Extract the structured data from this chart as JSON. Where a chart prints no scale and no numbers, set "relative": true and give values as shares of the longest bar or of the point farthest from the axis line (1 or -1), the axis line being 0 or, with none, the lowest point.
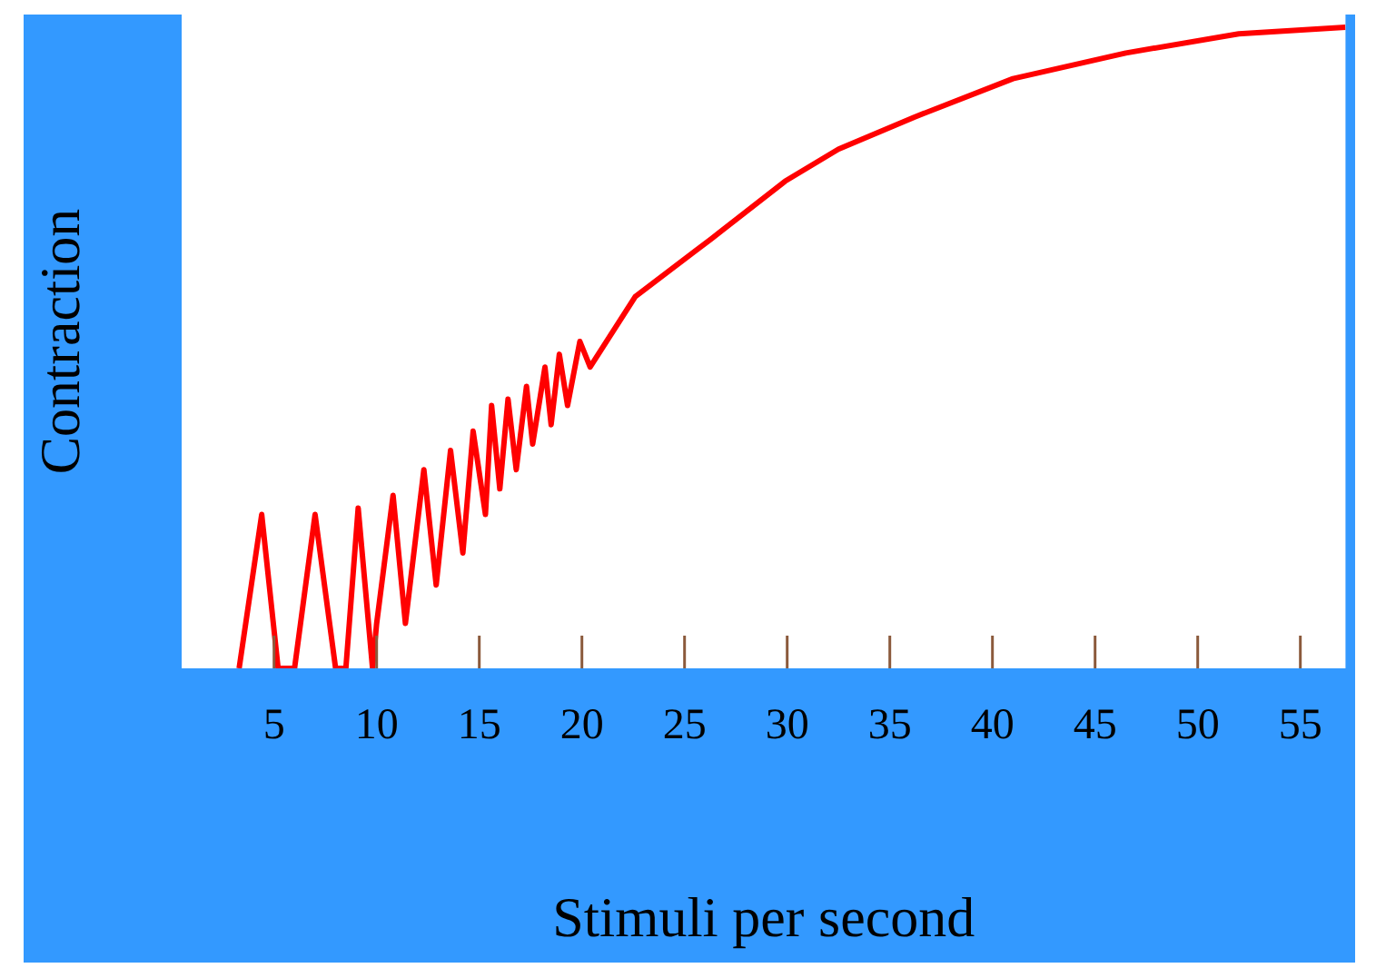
{
  "chart_data": {
    "type": "line",
    "xlabel": "Stimuli per second",
    "ylabel": "Contraction",
    "relative": true,
    "marker": "none",
    "color": "#ff0000",
    "xlim": [
      0.5,
      57.2
    ],
    "xticks": [
      5,
      10,
      15,
      20,
      25,
      30,
      35,
      40,
      45,
      50,
      55
    ],
    "x": [
      3.3,
      4.4,
      5.2,
      6.0,
      7.0,
      8.0,
      8.5,
      9.1,
      9.8,
      10.0,
      10.8,
      11.4,
      12.3,
      12.9,
      13.6,
      14.2,
      14.7,
      15.3,
      15.6,
      16.0,
      16.4,
      16.8,
      17.3,
      17.6,
      18.2,
      18.5,
      18.9,
      19.3,
      19.9,
      20.4,
      22.6,
      26.3,
      29.9,
      32.5,
      36.2,
      41.0,
      46.5,
      52.0,
      57.2
    ],
    "values": [
      0,
      0.24,
      0,
      0,
      0.24,
      0,
      0,
      0.25,
      0,
      0.07,
      0.27,
      0.07,
      0.31,
      0.13,
      0.34,
      0.18,
      0.37,
      0.24,
      0.41,
      0.28,
      0.42,
      0.31,
      0.44,
      0.35,
      0.47,
      0.38,
      0.49,
      0.41,
      0.51,
      0.47,
      0.58,
      0.67,
      0.76,
      0.81,
      0.86,
      0.92,
      0.96,
      0.99,
      1
    ]
  }
}
